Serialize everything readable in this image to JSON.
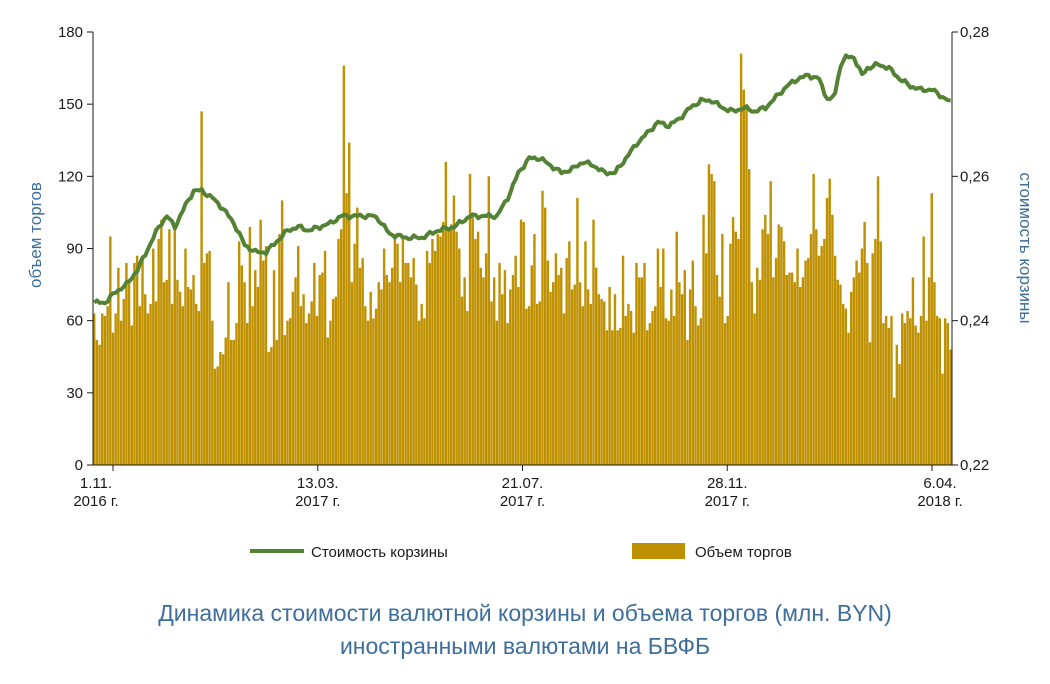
{
  "chart_data": {
    "type": "bar+line",
    "title": "Динамика стоимости валютной корзины и объема торгов (млн. BYN)",
    "title_line2": "иностранными валютами на БВФБ",
    "y_left": {
      "label": "объем торгов",
      "ticks": [
        "0",
        "30",
        "60",
        "90",
        "120",
        "150",
        "180"
      ],
      "range": [
        0,
        180
      ]
    },
    "y_right": {
      "label": "стоимость корзины",
      "ticks": [
        "0,22",
        "0,24",
        "0,26",
        "0,28"
      ],
      "range": [
        0.22,
        0.28
      ]
    },
    "x_labels": [
      {
        "line1": "1.11.",
        "line2": "2016 г."
      },
      {
        "line1": "13.03.",
        "line2": "2017 г."
      },
      {
        "line1": "21.07.",
        "line2": "2017 г."
      },
      {
        "line1": "28.11.",
        "line2": "2017 г."
      },
      {
        "line1": "6.04.",
        "line2": "2018 г."
      }
    ],
    "legend": {
      "line_label": "Стоимость корзины",
      "bar_label": "Объем торгов"
    },
    "colors": {
      "bar": "#bf9000",
      "line": "#548235",
      "axis_title": "#3d6e9c"
    },
    "series": [
      {
        "name": "Стоимость корзины",
        "kind": "line",
        "axis": "right",
        "points": [
          [
            0,
            0.2425
          ],
          [
            4,
            0.2425
          ],
          [
            8,
            0.244
          ],
          [
            12,
            0.245
          ],
          [
            16,
            0.247
          ],
          [
            20,
            0.25
          ],
          [
            24,
            0.253
          ],
          [
            27,
            0.2545
          ],
          [
            30,
            0.253
          ],
          [
            34,
            0.256
          ],
          [
            37,
            0.258
          ],
          [
            40,
            0.258
          ],
          [
            44,
            0.257
          ],
          [
            48,
            0.2555
          ],
          [
            52,
            0.2535
          ],
          [
            56,
            0.2505
          ],
          [
            60,
            0.2495
          ],
          [
            64,
            0.2495
          ],
          [
            68,
            0.251
          ],
          [
            72,
            0.2525
          ],
          [
            76,
            0.253
          ],
          [
            80,
            0.2525
          ],
          [
            84,
            0.253
          ],
          [
            88,
            0.2535
          ],
          [
            92,
            0.2545
          ],
          [
            96,
            0.2545
          ],
          [
            100,
            0.2545
          ],
          [
            104,
            0.2545
          ],
          [
            106,
            0.254
          ],
          [
            110,
            0.252
          ],
          [
            116,
            0.2515
          ],
          [
            122,
            0.2515
          ],
          [
            128,
            0.2525
          ],
          [
            134,
            0.253
          ],
          [
            140,
            0.2545
          ],
          [
            146,
            0.2545
          ],
          [
            150,
            0.2545
          ],
          [
            154,
            0.257
          ],
          [
            158,
            0.2605
          ],
          [
            162,
            0.2625
          ],
          [
            166,
            0.2625
          ],
          [
            170,
            0.2615
          ],
          [
            174,
            0.2605
          ],
          [
            178,
            0.261
          ],
          [
            182,
            0.262
          ],
          [
            186,
            0.2615
          ],
          [
            190,
            0.2605
          ],
          [
            194,
            0.2605
          ],
          [
            198,
            0.2625
          ],
          [
            202,
            0.2645
          ],
          [
            206,
            0.266
          ],
          [
            210,
            0.2675
          ],
          [
            214,
            0.267
          ],
          [
            218,
            0.268
          ],
          [
            222,
            0.2695
          ],
          [
            226,
            0.2705
          ],
          [
            230,
            0.2705
          ],
          [
            234,
            0.2695
          ],
          [
            238,
            0.269
          ],
          [
            242,
            0.2695
          ],
          [
            246,
            0.269
          ],
          [
            250,
            0.2695
          ],
          [
            254,
            0.271
          ],
          [
            258,
            0.2725
          ],
          [
            262,
            0.2735
          ],
          [
            266,
            0.274
          ],
          [
            270,
            0.2735
          ],
          [
            272,
            0.2715
          ],
          [
            274,
            0.2705
          ],
          [
            276,
            0.2715
          ],
          [
            278,
            0.2755
          ],
          [
            280,
            0.2765
          ],
          [
            283,
            0.2765
          ],
          [
            286,
            0.274
          ],
          [
            288,
            0.275
          ],
          [
            292,
            0.2755
          ],
          [
            296,
            0.275
          ],
          [
            300,
            0.2735
          ],
          [
            304,
            0.2725
          ],
          [
            308,
            0.272
          ],
          [
            312,
            0.272
          ],
          [
            316,
            0.271
          ],
          [
            320,
            0.27
          ],
          [
            324,
            0.27
          ],
          [
            328,
            0.2695
          ],
          [
            332,
            0.27
          ],
          [
            336,
            0.2695
          ],
          [
            339,
            0.2695
          ]
        ]
      },
      {
        "name": "Объем торгов",
        "kind": "bar",
        "axis": "left",
        "values": [
          63,
          52,
          50,
          63,
          62,
          66,
          95,
          55,
          63,
          82,
          60,
          69,
          84,
          76,
          58,
          84,
          87,
          66,
          86,
          71,
          63,
          67,
          90,
          68,
          94,
          102,
          76,
          77,
          98,
          67,
          98,
          77,
          72,
          66,
          90,
          74,
          73,
          79,
          67,
          64,
          147,
          84,
          88,
          89,
          60,
          40,
          41,
          47,
          46,
          53,
          76,
          52,
          52,
          59,
          93,
          83,
          76,
          59,
          99,
          66,
          81,
          74,
          102,
          85,
          91,
          47,
          49,
          81,
          52,
          96,
          110,
          54,
          60,
          61,
          72,
          78,
          91,
          66,
          71,
          59,
          63,
          68,
          84,
          62,
          79,
          80,
          89,
          53,
          60,
          69,
          70,
          94,
          98,
          166,
          113,
          134,
          76,
          92,
          107,
          82,
          86,
          66,
          60,
          72,
          61,
          65,
          76,
          73,
          90,
          79,
          76,
          82,
          96,
          92,
          76,
          94,
          84,
          84,
          78,
          86,
          75,
          60,
          67,
          61,
          89,
          84,
          94,
          89,
          96,
          95,
          101,
          126,
          98,
          100,
          112,
          97,
          90,
          70,
          78,
          64,
          121,
          105,
          94,
          97,
          82,
          78,
          88,
          120,
          68,
          78,
          60,
          84,
          71,
          81,
          59,
          73,
          79,
          87,
          74,
          102,
          101,
          65,
          66,
          83,
          96,
          67,
          68,
          114,
          107,
          85,
          72,
          76,
          88,
          79,
          82,
          63,
          86,
          93,
          73,
          75,
          111,
          76,
          66,
          93,
          73,
          67,
          102,
          82,
          71,
          69,
          68,
          56,
          74,
          56,
          71,
          56,
          57,
          87,
          62,
          67,
          64,
          55,
          84,
          78,
          78,
          84,
          56,
          59,
          64,
          66,
          90,
          74,
          90,
          61,
          60,
          73,
          62,
          97,
          76,
          71,
          81,
          52,
          73,
          85,
          66,
          58,
          61,
          104,
          88,
          125,
          121,
          118,
          79,
          70,
          96,
          59,
          62,
          92,
          103,
          97,
          94,
          171,
          156,
          148,
          123,
          76,
          63,
          82,
          77,
          98,
          104,
          96,
          118,
          78,
          86,
          100,
          99,
          93,
          79,
          80,
          80,
          76,
          90,
          74,
          78,
          85,
          86,
          96,
          121,
          98,
          87,
          91,
          94,
          111,
          119,
          104,
          87,
          77,
          75,
          67,
          65,
          55,
          72,
          78,
          85,
          80,
          90,
          101,
          84,
          51,
          88,
          94,
          120,
          93,
          59,
          62,
          57,
          62,
          28,
          50,
          42,
          63,
          59,
          64,
          61,
          78,
          58,
          55,
          62,
          95,
          60,
          78,
          113,
          76,
          62,
          61,
          38,
          61,
          59,
          48
        ]
      }
    ]
  }
}
